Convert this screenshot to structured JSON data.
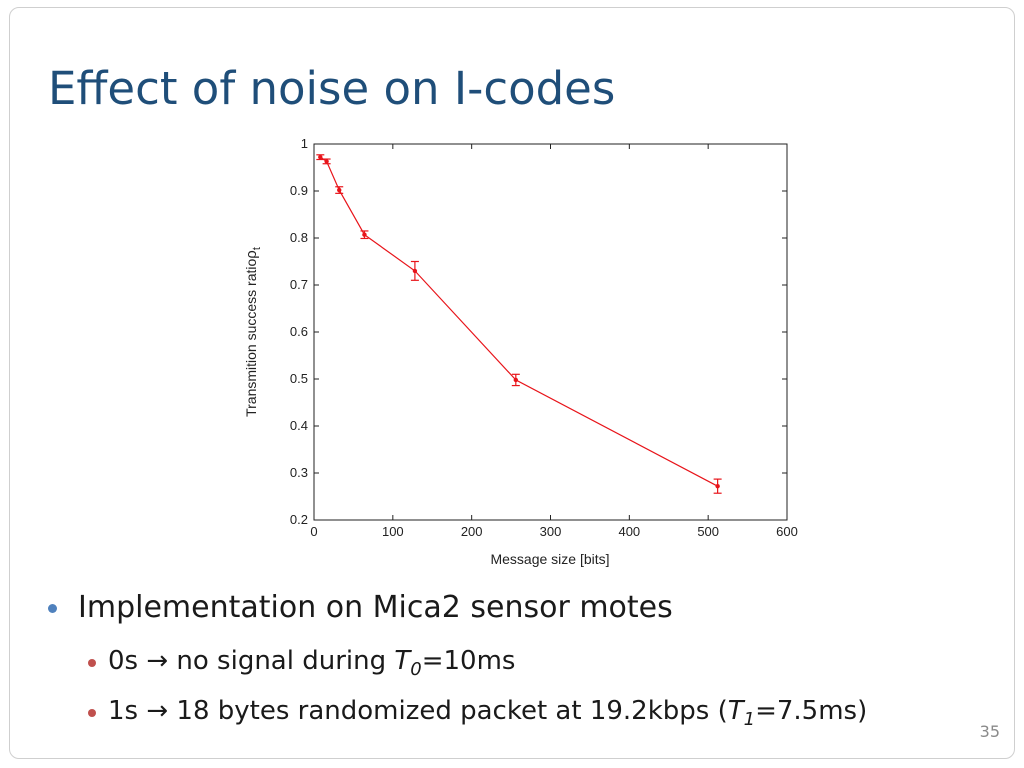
{
  "slide": {
    "title": "Effect of noise on I-codes",
    "page_number": "35"
  },
  "bullets": {
    "main": "Implementation on Mica2 sensor motes",
    "sub1": {
      "prefix": "0s → no signal during ",
      "var": "T",
      "var_sub": "0",
      "suffix": "=10ms"
    },
    "sub2": {
      "prefix": "1s → 18 bytes randomized packet at 19.2kbps (",
      "var": "T",
      "var_sub": "1",
      "suffix": "=7.5ms)"
    }
  },
  "chart_data": {
    "type": "line",
    "xlabel": "Message size [bits]",
    "ylabel": "Transmition success ratio",
    "ylabel_symbol": "ρ",
    "ylabel_symbol_sub": "t",
    "xlim": [
      0,
      600
    ],
    "ylim": [
      0.2,
      1.0
    ],
    "xticks": [
      0,
      100,
      200,
      300,
      400,
      500,
      600
    ],
    "yticks": [
      "0.2",
      "0.3",
      "0.4",
      "0.5",
      "0.6",
      "0.7",
      "0.8",
      "0.9",
      "1"
    ],
    "grid": false,
    "series": [
      {
        "color": "#e8141a",
        "points": [
          {
            "x": 8,
            "y": 0.972,
            "err": 0.005
          },
          {
            "x": 16,
            "y": 0.963,
            "err": 0.005
          },
          {
            "x": 32,
            "y": 0.902,
            "err": 0.007
          },
          {
            "x": 64,
            "y": 0.807,
            "err": 0.008
          },
          {
            "x": 128,
            "y": 0.73,
            "err": 0.02
          },
          {
            "x": 256,
            "y": 0.498,
            "err": 0.012
          },
          {
            "x": 512,
            "y": 0.272,
            "err": 0.015
          }
        ]
      }
    ]
  }
}
